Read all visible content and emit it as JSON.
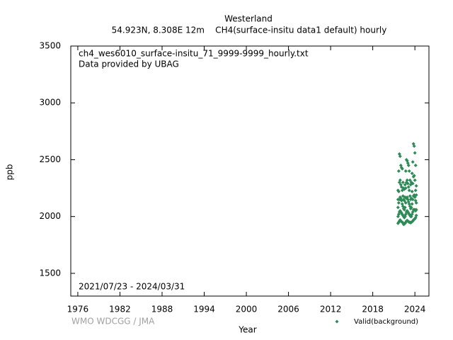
{
  "chart_data": {
    "type": "scatter",
    "title": "Westerland",
    "subtitle": "54.923N, 8.308E 12m    CH4(surface-insitu data1 default) hourly",
    "annotations": [
      "ch4_wes6010_surface-insitu_71_9999-9999_hourly.txt",
      "Data provided by UBAG",
      "2021/07/23 - 2024/03/31"
    ],
    "credit": "WMO WDCGG / JMA",
    "x_label": "Year",
    "y_label": "ppb",
    "xlim": [
      1975,
      2026
    ],
    "ylim": [
      1300,
      3500
    ],
    "xticks": [
      1976,
      1982,
      1988,
      1994,
      2000,
      2006,
      2012,
      2018,
      2024
    ],
    "yticks": [
      1500,
      2000,
      2500,
      3000,
      3500
    ],
    "x": [
      2021.6,
      2021.6,
      2021.6,
      2021.6,
      2021.6,
      2021.7,
      2021.7,
      2021.7,
      2021.7,
      2021.7,
      2021.8,
      2021.8,
      2021.8,
      2021.8,
      2021.8,
      2021.9,
      2021.9,
      2021.9,
      2021.9,
      2021.9,
      2022.0,
      2022.0,
      2022.0,
      2022.0,
      2022.0,
      2022.1,
      2022.1,
      2022.1,
      2022.1,
      2022.1,
      2022.2,
      2022.2,
      2022.2,
      2022.2,
      2022.2,
      2022.3,
      2022.3,
      2022.3,
      2022.3,
      2022.3,
      2022.4,
      2022.4,
      2022.4,
      2022.4,
      2022.4,
      2022.5,
      2022.5,
      2022.5,
      2022.5,
      2022.5,
      2022.6,
      2022.6,
      2022.6,
      2022.6,
      2022.6,
      2022.7,
      2022.7,
      2022.7,
      2022.7,
      2022.7,
      2022.8,
      2022.8,
      2022.8,
      2022.8,
      2022.8,
      2022.9,
      2022.9,
      2022.9,
      2022.9,
      2022.9,
      2023.0,
      2023.0,
      2023.0,
      2023.0,
      2023.0,
      2023.1,
      2023.1,
      2023.1,
      2023.1,
      2023.1,
      2023.2,
      2023.2,
      2023.2,
      2023.2,
      2023.2,
      2023.3,
      2023.3,
      2023.3,
      2023.3,
      2023.3,
      2023.4,
      2023.4,
      2023.4,
      2023.4,
      2023.4,
      2023.5,
      2023.5,
      2023.5,
      2023.5,
      2023.5,
      2023.6,
      2023.6,
      2023.6,
      2023.6,
      2023.6,
      2023.7,
      2023.7,
      2023.7,
      2023.7,
      2023.7,
      2023.8,
      2023.8,
      2023.8,
      2023.8,
      2023.8,
      2023.9,
      2023.9,
      2023.9,
      2023.9,
      2023.9,
      2024.0,
      2024.0,
      2024.0,
      2024.0,
      2024.0,
      2024.1,
      2024.1,
      2024.1,
      2024.1,
      2024.1,
      2024.2,
      2024.2,
      2024.2,
      2024.2,
      2024.2
    ],
    "series": [
      {
        "name": "Valid(background)",
        "color": "#2e8b57",
        "values": [
          1940,
          2000,
          2080,
          2150,
          2230,
          1950,
          2020,
          2120,
          2220,
          2400,
          1960,
          2040,
          2150,
          2300,
          2550,
          1970,
          2050,
          2170,
          2320,
          2530,
          1960,
          2040,
          2160,
          2280,
          2450,
          1955,
          2030,
          2140,
          2260,
          2430,
          1950,
          2020,
          2110,
          2230,
          2420,
          1945,
          2010,
          2090,
          2180,
          2300,
          1930,
          2000,
          2070,
          2150,
          2250,
          1935,
          1990,
          2060,
          2140,
          2240,
          1940,
          2000,
          2080,
          2170,
          2280,
          1950,
          2020,
          2120,
          2250,
          2400,
          1960,
          2040,
          2160,
          2300,
          2500,
          1965,
          2050,
          2170,
          2320,
          2490,
          1960,
          2040,
          2150,
          2290,
          2470,
          1955,
          2030,
          2130,
          2260,
          2450,
          1950,
          2020,
          2110,
          2230,
          2400,
          1950,
          2010,
          2090,
          2180,
          2320,
          1945,
          2000,
          2070,
          2150,
          2280,
          1950,
          2000,
          2080,
          2160,
          2300,
          1955,
          2020,
          2110,
          2220,
          2380,
          1960,
          2040,
          2150,
          2290,
          2480,
          1970,
          2060,
          2180,
          2350,
          2640,
          1975,
          2060,
          2190,
          2360,
          2620,
          1980,
          2060,
          2170,
          2320,
          2560,
          1990,
          2050,
          2140,
          2230,
          2450,
          2010,
          2060,
          2120,
          2190,
          2270
        ]
      }
    ]
  }
}
